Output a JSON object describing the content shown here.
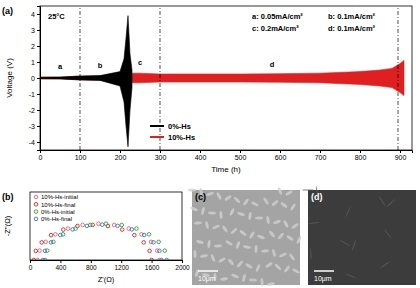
{
  "chart_data": [
    {
      "type": "area",
      "title": "(a)",
      "x_label": "Time (h)",
      "y_label": "Voltage (V)",
      "xlim": [
        0,
        930
      ],
      "xticks": [
        0,
        100,
        200,
        300,
        400,
        500,
        600,
        700,
        800,
        900
      ],
      "ylim": [
        -4.5,
        4.5
      ],
      "yticks": [
        -4,
        -3,
        -2,
        -1,
        0,
        1,
        2,
        3,
        4
      ],
      "legend": "lower left",
      "series": [
        {
          "name": "0%-Hs",
          "color": "#000000",
          "x": [
            0,
            50,
            100,
            150,
            200,
            210,
            215,
            220,
            225,
            230
          ],
          "values": [
            0.05,
            0.06,
            0.12,
            0.15,
            0.4,
            1.2,
            2.5,
            3.9,
            1.5,
            0.5
          ],
          "lower": [
            -0.05,
            -0.06,
            -0.12,
            -0.15,
            -0.5,
            -1.5,
            -3,
            -4.3,
            -2,
            -0.6
          ]
        },
        {
          "name": "10%-Hs",
          "color": "#e02020",
          "x": [
            0,
            50,
            100,
            150,
            200,
            250,
            300,
            400,
            500,
            600,
            700,
            800,
            850,
            880,
            900,
            910
          ],
          "values": [
            0.05,
            0.05,
            0.12,
            0.13,
            0.3,
            0.3,
            0.25,
            0.25,
            0.25,
            0.27,
            0.3,
            0.4,
            0.5,
            0.6,
            0.9,
            1.1
          ],
          "lower": [
            -0.05,
            -0.05,
            -0.12,
            -0.13,
            -0.3,
            -0.3,
            -0.25,
            -0.25,
            -0.25,
            -0.27,
            -0.3,
            -0.4,
            -0.5,
            -0.6,
            -0.9,
            -1.1
          ]
        }
      ],
      "vlines": [
        100,
        300,
        895
      ],
      "annotations": [
        {
          "text": "25°C",
          "x": 20,
          "y": 3.7
        },
        {
          "text": "a",
          "x": 50,
          "y": 0.55
        },
        {
          "text": "b",
          "x": 150,
          "y": 0.6
        },
        {
          "text": "c",
          "x": 250,
          "y": 0.8
        },
        {
          "text": "d",
          "x": 580,
          "y": 0.7
        }
      ],
      "notes": [
        "a: 0.05mA/cm²",
        "b: 0.1mA/cm²",
        "c: 0.2mA/cm²",
        "d: 0.1mA/cm²"
      ]
    },
    {
      "type": "scatter",
      "title": "(b)",
      "x_label": "Z'(Ω)",
      "y_label": "-Z''(Ω)",
      "xlim": [
        0,
        2000
      ],
      "xticks": [
        0,
        400,
        800,
        1200,
        1600,
        2000
      ],
      "ylim": [
        0,
        1500
      ],
      "tick_labels": "x",
      "legend": "upper left",
      "marker": "circle",
      "series": [
        {
          "name": "10%-Hs-initial",
          "color": "#e8636b",
          "x": [
            100,
            127,
            207,
            334,
            500,
            693,
            900,
            1107,
            1300,
            1466,
            1593,
            1673,
            1700
          ],
          "values": [
            0,
            207,
            400,
            566,
            693,
            773,
            800,
            773,
            693,
            566,
            400,
            207,
            0
          ]
        },
        {
          "name": "10%-Hs-final",
          "color": "#d62020",
          "x": [
            50,
            76,
            154,
            277,
            438,
            624,
            825,
            1026,
            1213,
            1373,
            1496,
            1574,
            1600
          ],
          "values": [
            0,
            201,
            388,
            548,
            671,
            749,
            775,
            749,
            671,
            548,
            388,
            201,
            0
          ]
        },
        {
          "name": "0%-Hs-initial",
          "color": "#2ca02c",
          "x": [
            200,
            227,
            307,
            434,
            600,
            793,
            1000,
            1207,
            1400,
            1566,
            1693,
            1773,
            1800
          ],
          "values": [
            0,
            207,
            400,
            566,
            693,
            773,
            800,
            773,
            693,
            566,
            400,
            207,
            0
          ]
        },
        {
          "name": "0%-Hs-final",
          "color": "#3b6fd8",
          "x": [
            170,
            197,
            275,
            398,
            560,
            748,
            950,
            1152,
            1340,
            1502,
            1625,
            1703,
            1730
          ],
          "values": [
            0,
            202,
            390,
            551,
            675,
            753,
            780,
            753,
            675,
            551,
            390,
            202,
            0
          ]
        }
      ]
    }
  ],
  "images": [
    {
      "label": "(c)",
      "scale_bar": "10μm"
    },
    {
      "label": "(d)",
      "scale_bar": "10μm"
    }
  ]
}
